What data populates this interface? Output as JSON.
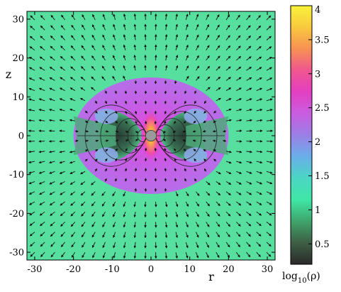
{
  "chart_data": {
    "type": "heatmap",
    "title": "",
    "xlabel": "r",
    "ylabel": "z",
    "xlim": [
      -32,
      32
    ],
    "ylim": [
      -32,
      32
    ],
    "xticks": [
      -30,
      -20,
      -10,
      0,
      10,
      20,
      30
    ],
    "yticks": [
      -30,
      -20,
      -10,
      0,
      10,
      20,
      30
    ],
    "grid": false,
    "overlays": [
      "velocity-arrows",
      "magnetic-field-lines",
      "central-object"
    ],
    "colorbar": {
      "label_prefix": "log",
      "label_sub": "10",
      "label_suffix": "(ρ)",
      "range": [
        0.2,
        4
      ],
      "ticks": [
        "0.5",
        "1",
        "1.5",
        "2",
        "2.5",
        "3",
        "3.5",
        "4"
      ],
      "tick_values": [
        0.5,
        1,
        1.5,
        2,
        2.5,
        3,
        3.5,
        4
      ],
      "colors": [
        "#2a2a2a",
        "#3e5e45",
        "#3fa56c",
        "#3fe7a6",
        "#4bd6c4",
        "#6aaee9",
        "#9b7fe6",
        "#c95de0",
        "#e33fc0",
        "#f0568f",
        "#f79153",
        "#f9c93e",
        "#f9f33a"
      ]
    },
    "regions": [
      {
        "name": "ambient medium",
        "log10_rho": 1.3
      },
      {
        "name": "envelope",
        "log10_rho": 2.5,
        "r_extent": 20,
        "z_extent": 15
      },
      {
        "name": "disk cavity",
        "log10_rho": 1.0
      },
      {
        "name": "polar jet base",
        "log10_rho": 3.9
      }
    ]
  }
}
